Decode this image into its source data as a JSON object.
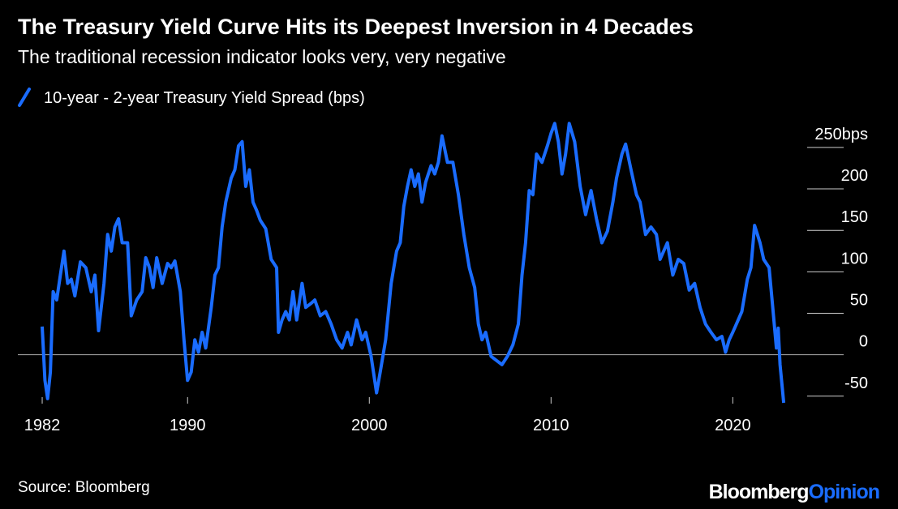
{
  "chart_data": {
    "type": "line",
    "title": "The Treasury Yield Curve Hits its Deepest Inversion in 4 Decades",
    "subtitle": "The traditional recession indicator looks very, very negative",
    "source": "Source: Bloomberg",
    "branding": {
      "name": "Bloomberg",
      "section": "Opinion"
    },
    "x": [
      1982.0,
      1982.15,
      1982.3,
      1982.45,
      1982.6,
      1982.8,
      1983.0,
      1983.2,
      1983.4,
      1983.6,
      1983.8,
      1984.1,
      1984.4,
      1984.7,
      1984.9,
      1985.1,
      1985.4,
      1985.6,
      1985.8,
      1986.0,
      1986.2,
      1986.4,
      1986.7,
      1986.9,
      1987.2,
      1987.5,
      1987.7,
      1987.9,
      1988.1,
      1988.3,
      1988.6,
      1988.9,
      1989.1,
      1989.3,
      1989.6,
      1989.8,
      1990.0,
      1990.2,
      1990.4,
      1990.6,
      1990.8,
      1991.0,
      1991.3,
      1991.5,
      1991.7,
      1991.9,
      1992.1,
      1992.4,
      1992.6,
      1992.8,
      1993.0,
      1993.2,
      1993.4,
      1993.6,
      1993.8,
      1994.0,
      1994.3,
      1994.6,
      1994.9,
      1995.0,
      1995.2,
      1995.4,
      1995.6,
      1995.8,
      1996.0,
      1996.3,
      1996.5,
      1996.8,
      1997.0,
      1997.3,
      1997.6,
      1997.9,
      1998.2,
      1998.5,
      1998.8,
      1999.0,
      1999.3,
      1999.6,
      1999.8,
      2000.1,
      2000.4,
      2000.6,
      2000.9,
      2001.2,
      2001.5,
      2001.7,
      2001.9,
      2002.1,
      2002.3,
      2002.5,
      2002.7,
      2002.9,
      2003.1,
      2003.4,
      2003.6,
      2003.8,
      2004.0,
      2004.3,
      2004.6,
      2004.9,
      2005.2,
      2005.5,
      2005.8,
      2006.0,
      2006.2,
      2006.4,
      2006.7,
      2007.0,
      2007.3,
      2007.6,
      2007.9,
      2008.2,
      2008.4,
      2008.6,
      2008.8,
      2009.0,
      2009.2,
      2009.5,
      2009.8,
      2010.0,
      2010.2,
      2010.4,
      2010.6,
      2010.8,
      2011.0,
      2011.3,
      2011.6,
      2011.9,
      2012.2,
      2012.5,
      2012.8,
      2013.1,
      2013.4,
      2013.6,
      2013.9,
      2014.1,
      2014.4,
      2014.7,
      2014.9,
      2015.2,
      2015.5,
      2015.8,
      2016.0,
      2016.4,
      2016.7,
      2017.0,
      2017.3,
      2017.6,
      2017.9,
      2018.2,
      2018.5,
      2018.8,
      2019.1,
      2019.4,
      2019.6,
      2019.8,
      2020.0,
      2020.2,
      2020.5,
      2020.8,
      2021.0,
      2021.2,
      2021.5,
      2021.7,
      2022.0,
      2022.2,
      2022.4,
      2022.5,
      2022.6,
      2022.8
    ],
    "series": [
      {
        "name": "10-year - 2-year Treasury Yield Spread (bps)",
        "color": "#1a6cff",
        "values": [
          34,
          -31,
          -53,
          -21,
          76,
          66,
          96,
          125,
          86,
          91,
          71,
          112,
          105,
          76,
          96,
          29,
          86,
          145,
          125,
          154,
          164,
          135,
          135,
          47,
          66,
          76,
          117,
          105,
          81,
          117,
          86,
          110,
          105,
          113,
          76,
          18,
          -31,
          -21,
          18,
          3,
          27,
          8,
          57,
          96,
          105,
          154,
          184,
          213,
          223,
          252,
          257,
          203,
          223,
          184,
          174,
          162,
          152,
          115,
          105,
          27,
          42,
          52,
          42,
          76,
          42,
          86,
          57,
          62,
          66,
          47,
          52,
          37,
          18,
          8,
          27,
          12,
          42,
          18,
          27,
          -2,
          -46,
          -21,
          18,
          86,
          125,
          135,
          179,
          203,
          223,
          203,
          218,
          184,
          208,
          228,
          218,
          232,
          264,
          232,
          232,
          193,
          145,
          105,
          81,
          37,
          18,
          27,
          -2,
          -7,
          -12,
          -2,
          12,
          37,
          96,
          135,
          198,
          193,
          242,
          232,
          252,
          267,
          279,
          257,
          218,
          242,
          279,
          257,
          203,
          169,
          198,
          164,
          135,
          149,
          184,
          213,
          242,
          254,
          223,
          193,
          184,
          145,
          154,
          145,
          115,
          135,
          96,
          115,
          110,
          78,
          86,
          57,
          37,
          27,
          18,
          22,
          3,
          18,
          27,
          37,
          52,
          91,
          105,
          156,
          135,
          115,
          105,
          57,
          8,
          32,
          -12,
          -58
        ]
      }
    ],
    "xlim": [
      1980.66,
      2026.1
    ],
    "xticks": [
      1982,
      1990,
      2000,
      2010,
      2020
    ],
    "ylim": [
      -60,
      290
    ],
    "yticks": [
      {
        "value": 250,
        "label": "250bps"
      },
      200,
      150,
      100,
      50,
      0,
      -50
    ],
    "grid": true
  }
}
